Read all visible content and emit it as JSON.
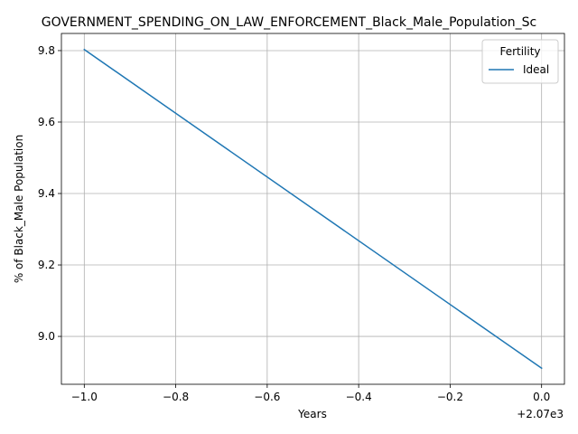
{
  "chart_data": {
    "type": "line",
    "title": "GOVERNMENT_SPENDING_ON_LAW_ENFORCEMENT_Black_Male_Population_Sc",
    "xlabel": "Years",
    "ylabel": "% of Black_Male Population",
    "x_offset_label": "+2.07e3",
    "x": [
      2069,
      2070
    ],
    "series": [
      {
        "name": "Ideal",
        "color": "#1f77b4",
        "values": [
          9.803,
          8.911
        ]
      }
    ],
    "xticks": [
      -1.0,
      -0.8,
      -0.6,
      -0.4,
      -0.2,
      0.0
    ],
    "xtick_labels": [
      "−1.0",
      "−0.8",
      "−0.6",
      "−0.4",
      "−0.2",
      "0.0"
    ],
    "yticks": [
      9.0,
      9.2,
      9.4,
      9.6,
      9.8
    ],
    "ytick_labels": [
      "9.0",
      "9.2",
      "9.4",
      "9.6",
      "9.8"
    ],
    "xlim": [
      2068.95,
      2070.05
    ],
    "ylim": [
      8.866,
      9.848
    ],
    "grid": true,
    "legend": {
      "title": "Fertility",
      "placement": "top-right"
    }
  }
}
